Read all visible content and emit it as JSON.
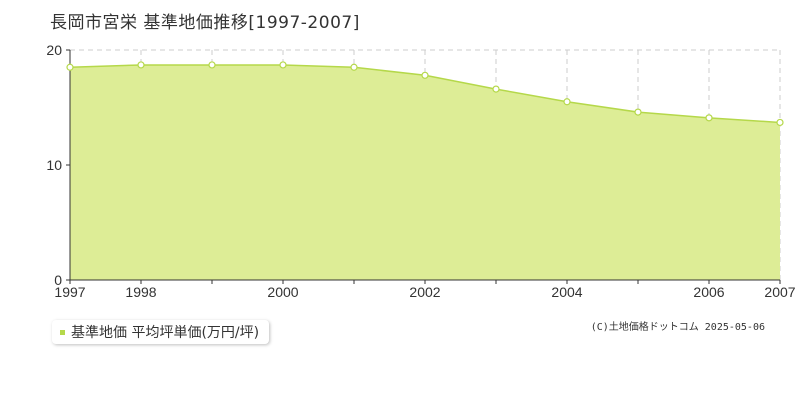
{
  "title": "長岡市宮栄 基準地価推移[1997-2007]",
  "legend": {
    "label": "基準地価 平均坪単価(万円/坪)"
  },
  "credit": "(C)土地価格ドットコム 2025-05-06",
  "colors": {
    "area_fill": "#dded96",
    "line": "#b5d84a",
    "grid": "#cccccc",
    "axis": "#333333",
    "marker_fill": "#ffffff"
  },
  "chart_data": {
    "type": "area",
    "x": [
      1997,
      1998,
      1999,
      2000,
      2001,
      2002,
      2003,
      2004,
      2005,
      2006,
      2007
    ],
    "series": [
      {
        "name": "基準地価 平均坪単価(万円/坪)",
        "values": [
          18.5,
          18.7,
          18.7,
          18.7,
          18.5,
          17.8,
          16.6,
          15.5,
          14.6,
          14.1,
          13.7
        ]
      }
    ],
    "xlim": [
      1997,
      2007
    ],
    "ylim": [
      0,
      20
    ],
    "yticks": [
      0,
      10,
      20
    ],
    "xtick_labels": [
      "1997",
      "1998",
      "2000",
      "2002",
      "2004",
      "2006",
      "2007"
    ],
    "grid": true
  }
}
